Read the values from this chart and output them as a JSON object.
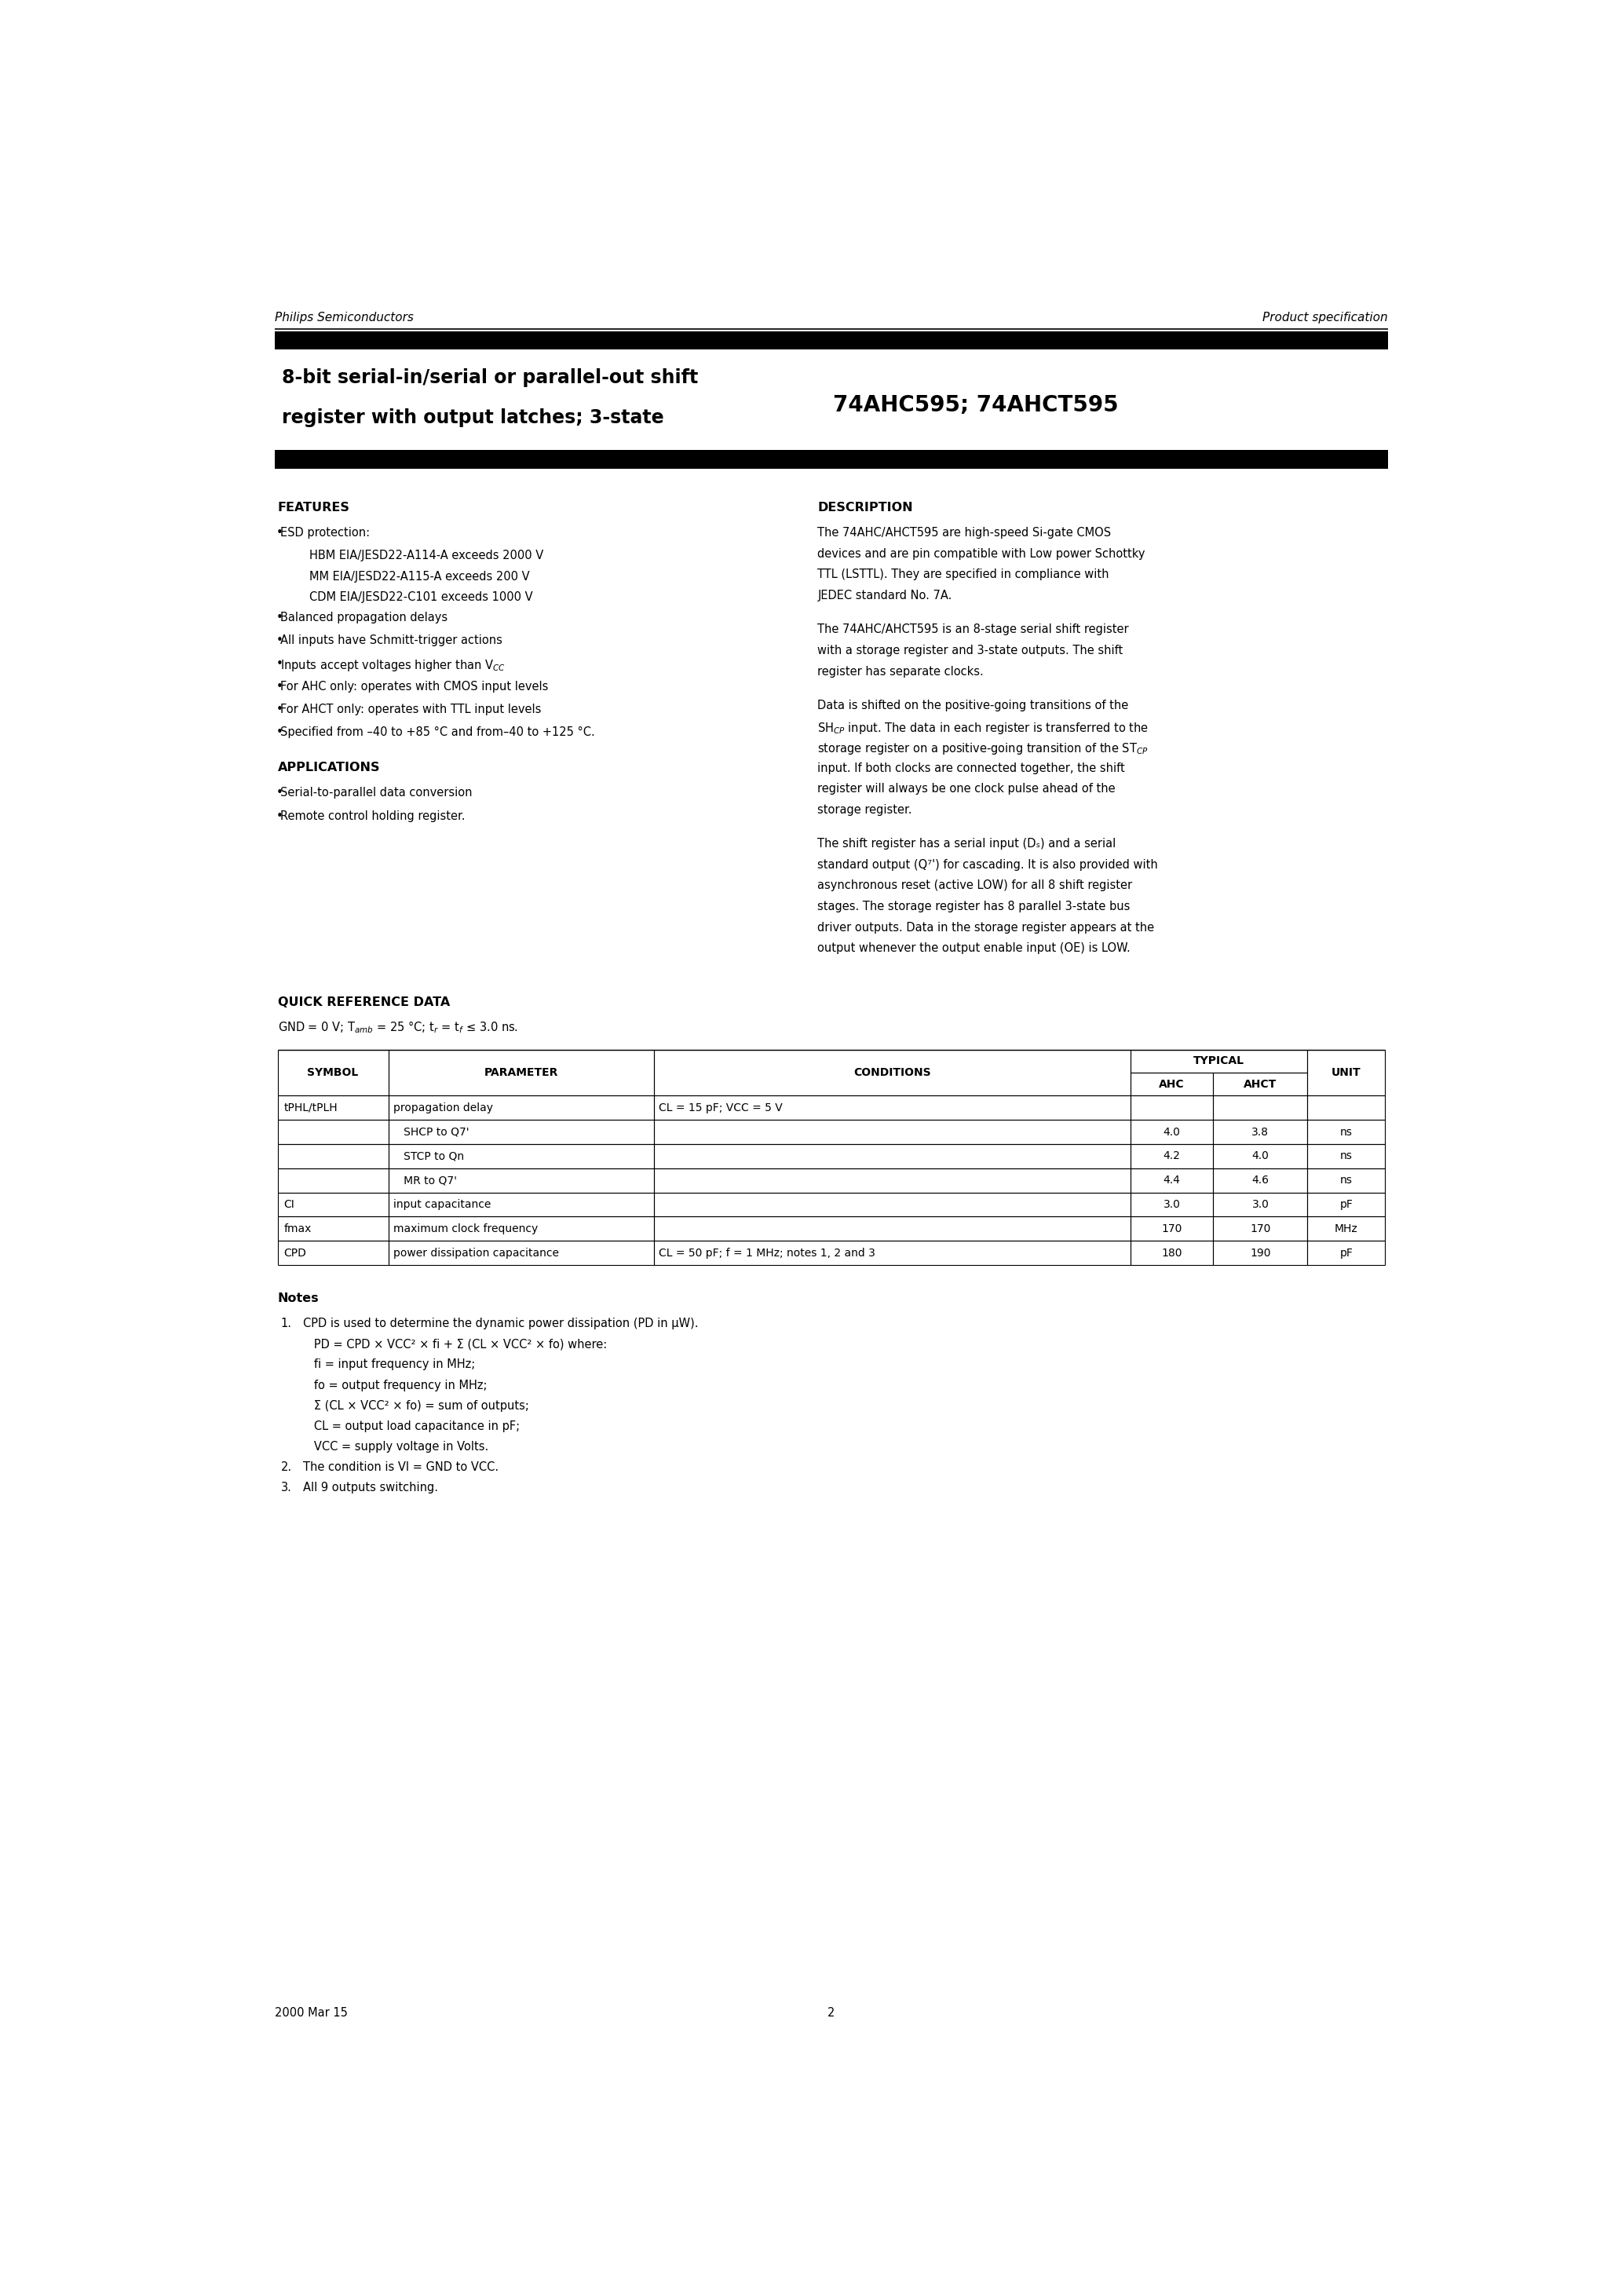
{
  "page_width": 20.66,
  "page_height": 29.24,
  "bg_color": "#ffffff",
  "header_left": "Philips Semiconductors",
  "header_right": "Product specification",
  "title_left_line1": "8-bit serial-in/serial or parallel-out shift",
  "title_left_line2": "register with output latches; 3-state",
  "title_right": "74AHC595; 74AHCT595",
  "features_title": "FEATURES",
  "features_items": [
    {
      "type": "bullet",
      "text": "ESD protection:"
    },
    {
      "type": "sub",
      "text": "HBM EIA/JESD22-A114-A exceeds 2000 V"
    },
    {
      "type": "sub",
      "text": "MM EIA/JESD22-A115-A exceeds 200 V"
    },
    {
      "type": "sub",
      "text": "CDM EIA/JESD22-C101 exceeds 1000 V"
    },
    {
      "type": "bullet",
      "text": "Balanced propagation delays"
    },
    {
      "type": "bullet",
      "text": "All inputs have Schmitt-trigger actions"
    },
    {
      "type": "bullet",
      "text": "Inputs accept voltages higher than V$_{CC}$"
    },
    {
      "type": "bullet",
      "text": "For AHC only: operates with CMOS input levels"
    },
    {
      "type": "bullet",
      "text": "For AHCT only: operates with TTL input levels"
    },
    {
      "type": "bullet",
      "text": "Specified from –40 to +85 °C and from–40 to +125 °C."
    }
  ],
  "applications_title": "APPLICATIONS",
  "applications_items": [
    "Serial-to-parallel data conversion",
    "Remote control holding register."
  ],
  "description_title": "DESCRIPTION",
  "desc_para1": "The 74AHC/AHCT595 are high-speed Si-gate CMOS devices and are pin compatible with Low power Schottky TTL (LSTTL). They are specified in compliance with JEDEC standard No. 7A.",
  "desc_para2": "The 74AHC/AHCT595 is an 8-stage serial shift register with a storage register and 3-state outputs. The shift register has separate clocks.",
  "desc_para3_line1": "Data is shifted on the positive-going transitions of the",
  "desc_para3_line2": "SH$_{CP}$ input. The data in each register is transferred to the",
  "desc_para3_line3": "storage register on a positive-going transition of the ST$_{CP}$",
  "desc_para3_line4": "input. If both clocks are connected together, the shift",
  "desc_para3_line5": "register will always be one clock pulse ahead of the",
  "desc_para3_line6": "storage register.",
  "desc_para4_line1": "The shift register has a serial input (D$_{S}$) and a serial",
  "desc_para4_line2": "standard output (Q$_{7}$') for cascading. It is also provided with",
  "desc_para4_line3": "asynchronous reset (active LOW) for all 8 shift register",
  "desc_para4_line4": "stages. The storage register has 8 parallel 3-state bus",
  "desc_para4_line5": "driver outputs. Data in the storage register appears at the",
  "desc_para4_line6": "output whenever the output enable input ($\\overline{OE}$) is LOW.",
  "qrd_title": "QUICK REFERENCE DATA",
  "qrd_subtitle": "GND = 0 V; T$_{amb}$ = 25 °C; t$_{r}$ = t$_{f}$ ≤ 3.0 ns.",
  "notes_title": "Notes",
  "footer_left": "2000 Mar 15",
  "footer_center": "2"
}
